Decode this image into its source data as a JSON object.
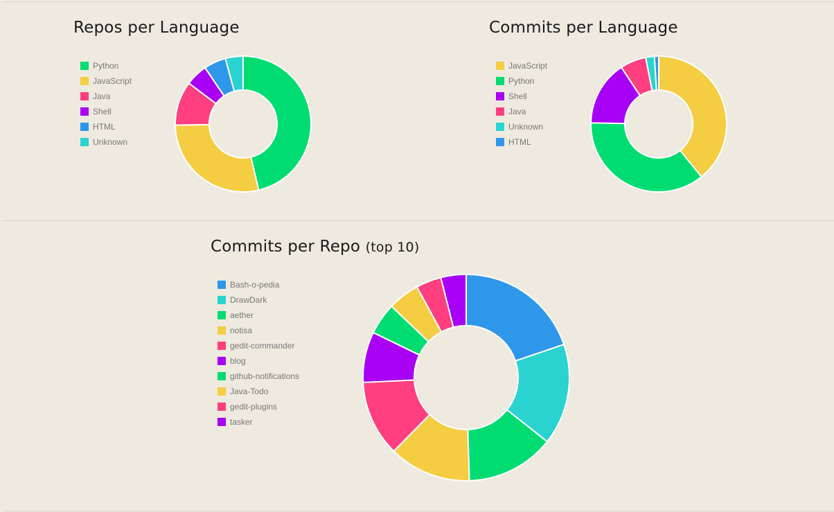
{
  "colors": {
    "python": "#00dc72",
    "javascript": "#f5cd43",
    "java": "#ff3f7f",
    "shell": "#a800f5",
    "html": "#2f97ea",
    "unknown": "#2ad3d0"
  },
  "chart_data": [
    {
      "type": "pie",
      "variant": "doughnut",
      "title": "Repos per Language",
      "legend_position": "left",
      "labels": [
        "Python",
        "JavaScript",
        "Java",
        "Shell",
        "HTML",
        "Unknown"
      ],
      "values": [
        44,
        27,
        10,
        5,
        5,
        4
      ],
      "colors": [
        "#00dc72",
        "#f5cd43",
        "#ff3f7f",
        "#a800f5",
        "#2f97ea",
        "#2ad3d0"
      ]
    },
    {
      "type": "pie",
      "variant": "doughnut",
      "title": "Commits per Language",
      "legend_position": "left",
      "labels": [
        "JavaScript",
        "Python",
        "Shell",
        "Java",
        "Unknown",
        "HTML"
      ],
      "values": [
        38,
        35,
        15,
        6,
        2,
        1
      ],
      "colors": [
        "#f5cd43",
        "#00dc72",
        "#a800f5",
        "#ff3f7f",
        "#2ad3d0",
        "#2f97ea"
      ]
    },
    {
      "type": "pie",
      "variant": "doughnut",
      "title": "Commits per Repo",
      "subtitle": "(top 10)",
      "legend_position": "left",
      "labels": [
        "Bash-o-pedia",
        "DrawDark",
        "aether",
        "notisa",
        "gedit-commander",
        "blog",
        "github-notifications",
        "Java-Todo",
        "gedit-plugins",
        "tasker"
      ],
      "values": [
        20,
        16,
        14,
        13,
        12,
        8,
        5,
        5,
        4,
        4
      ],
      "colors": [
        "#2f97ea",
        "#2ad3d0",
        "#00dc72",
        "#f5cd43",
        "#ff3f7f",
        "#a800f5",
        "#00dc72",
        "#f5cd43",
        "#ff3f7f",
        "#a800f5"
      ]
    }
  ]
}
